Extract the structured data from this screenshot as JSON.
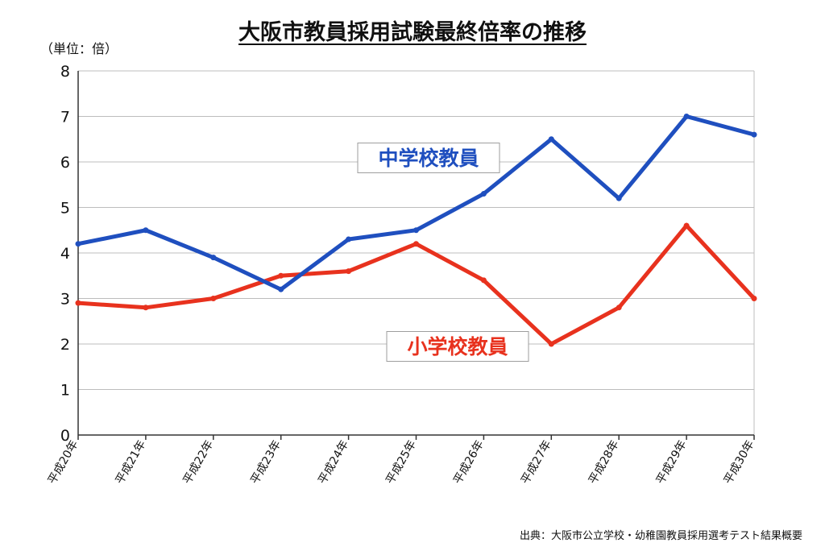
{
  "chart_data": {
    "type": "line",
    "title": "大阪市教員採用試験最終倍率の推移",
    "unit_label": "（単位：倍）",
    "source": "出典：大阪市公立学校・幼稚園教員採用選考テスト結果概要",
    "categories": [
      "平成20年",
      "平成21年",
      "平成22年",
      "平成23年",
      "平成24年",
      "平成25年",
      "平成26年",
      "平成27年",
      "平成28年",
      "平成29年",
      "平成30年"
    ],
    "ylim": [
      0,
      8
    ],
    "yticks": [
      "0",
      "1",
      "2",
      "3",
      "4",
      "5",
      "6",
      "7",
      "8"
    ],
    "grid": true,
    "series": [
      {
        "name": "中学校教員",
        "color": "#1f4fbf",
        "values": [
          4.2,
          4.5,
          3.9,
          3.2,
          4.3,
          4.5,
          5.3,
          6.5,
          5.2,
          7.0,
          6.6
        ]
      },
      {
        "name": "小学校教員",
        "color": "#e8321e",
        "values": [
          2.9,
          2.8,
          3.0,
          3.5,
          3.6,
          4.2,
          3.4,
          2.0,
          2.8,
          4.6,
          3.0
        ]
      }
    ]
  }
}
